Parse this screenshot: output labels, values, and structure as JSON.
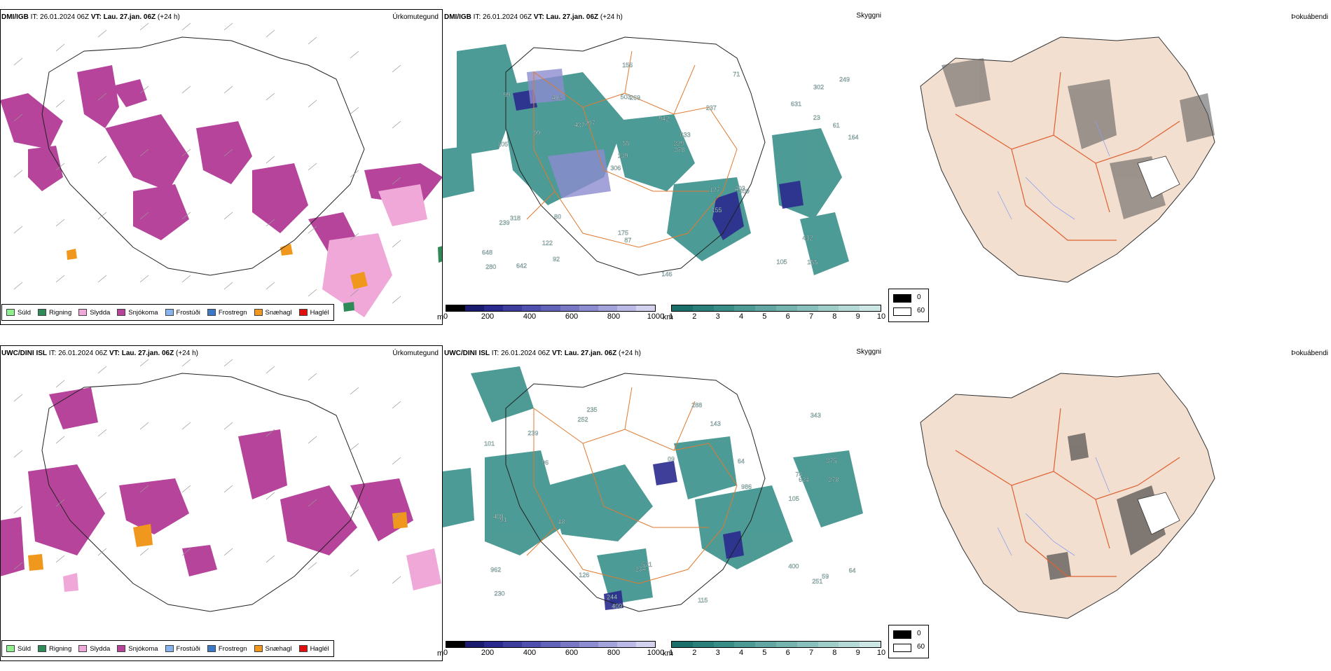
{
  "rows": [
    {
      "header": {
        "model": "DMI/IGB",
        "it": "IT: 26.01.2024 06Z",
        "vt_label": "VT: Lau. 27.jan. 06Z",
        "lead": "(+24 h)"
      },
      "titles": {
        "precip": "Úrkomutegund",
        "ceiling": "Skyggni",
        "cloud": "Þokuábendi"
      },
      "ceiling_labels": [
        "155",
        "105",
        "302",
        "306",
        "237",
        "642",
        "503",
        "942",
        "318",
        "297",
        "648",
        "122",
        "269",
        "633",
        "409",
        "99",
        "156",
        "164",
        "127",
        "23",
        "139",
        "175",
        "55",
        "402",
        "71",
        "80",
        "105",
        "412",
        "403",
        "146",
        "437",
        "99",
        "155",
        "92",
        "61",
        "329",
        "280",
        "87",
        "378",
        "239",
        "631",
        "249"
      ]
    },
    {
      "header": {
        "model": "UWC/DINI ISL",
        "it": "IT: 26.01.2024 06Z",
        "vt_label": "VT: Lau. 27.jan. 06Z",
        "lead": "(+24 h)"
      },
      "titles": {
        "precip": "Úrkomutegund",
        "ceiling": "Skyggni",
        "cloud": "Þokuábendi"
      },
      "ceiling_labels": [
        "400",
        "375",
        "59",
        "09",
        "230",
        "235",
        "74",
        "126",
        "343",
        "96",
        "278",
        "101",
        "105",
        "409",
        "962",
        "239",
        "251",
        "252",
        "521",
        "624",
        "409",
        "91",
        "115",
        "986",
        "244",
        "234",
        "288",
        "143",
        "64",
        "64",
        "48"
      ]
    }
  ],
  "precip_legend": [
    {
      "label": "Súld",
      "color": "#90ee90"
    },
    {
      "label": "Rigning",
      "color": "#2e8b57"
    },
    {
      "label": "Slydda",
      "color": "#f0a8d8"
    },
    {
      "label": "Snjókoma",
      "color": "#b5449a"
    },
    {
      "label": "Frostúði",
      "color": "#87b4f0"
    },
    {
      "label": "Frostregn",
      "color": "#3a78c8"
    },
    {
      "label": "Snæhagl",
      "color": "#f0981e"
    },
    {
      "label": "Haglél",
      "color": "#e01010"
    }
  ],
  "terrain_scale": {
    "unit": "m",
    "ticks": [
      "0",
      "200",
      "400",
      "600",
      "800",
      "1000"
    ],
    "colors": [
      "#000000",
      "#1a1a6e",
      "#2a2a8e",
      "#3d3d9e",
      "#4f4fae",
      "#6262b8",
      "#7777c4",
      "#8c8cd0",
      "#a3a3da",
      "#babae4",
      "#d2d2ee"
    ]
  },
  "ceiling_scale": {
    "unit": "km",
    "ticks": [
      "1",
      "2",
      "3",
      "4",
      "5",
      "6",
      "7",
      "8",
      "9",
      "10"
    ],
    "colors": [
      "#1b6e6a",
      "#2a7f7a",
      "#3a8c87",
      "#4d9994",
      "#61a6a1",
      "#75b3ae",
      "#89c0bb",
      "#9fcdc8",
      "#b5dad6",
      "#cbe6e3"
    ]
  },
  "cloud_legend": [
    "0",
    "60"
  ],
  "colors": {
    "snow": "#b5449a",
    "sleet": "#f0a8d8",
    "rain": "#2e8b57",
    "pellets": "#f0981e",
    "teal": "#2f8a84",
    "land": "#f2dfd0",
    "roads": "#e07a30",
    "grey": "#8a8a8a"
  }
}
